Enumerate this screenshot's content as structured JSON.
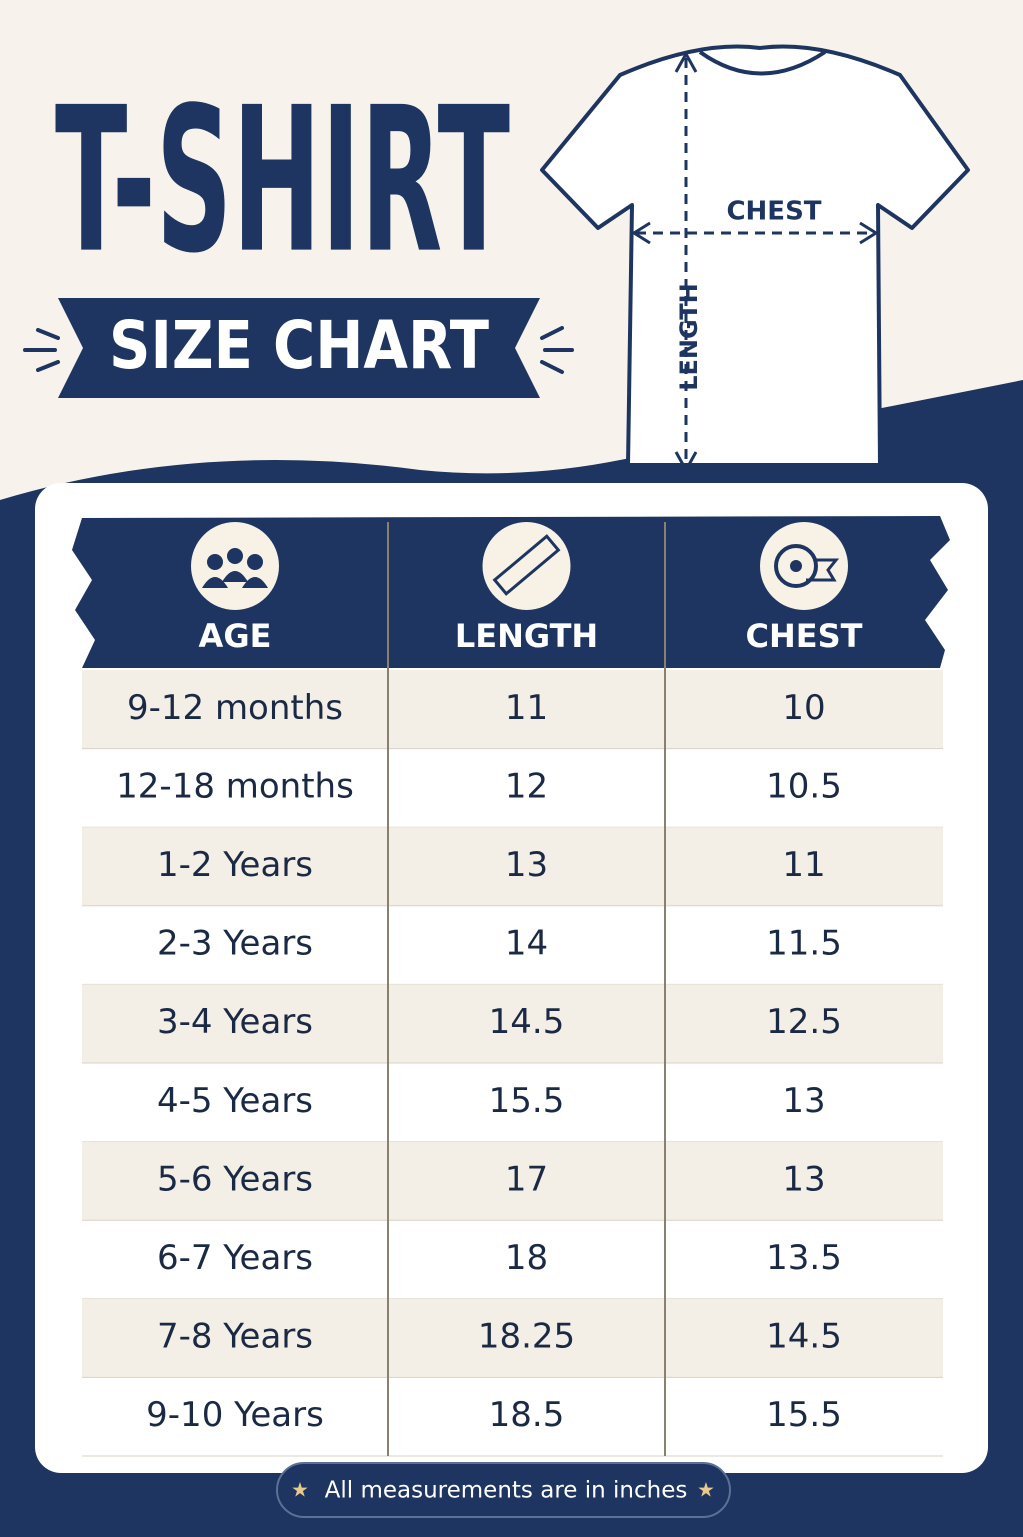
{
  "header": {
    "title": "T-SHIRT",
    "subtitle": "SIZE CHART"
  },
  "diagram": {
    "chest_label": "CHEST",
    "length_label": "LENGTH"
  },
  "table": {
    "columns": [
      "AGE",
      "LENGTH",
      "CHEST"
    ],
    "rows": [
      [
        "9-12 months",
        "11",
        "10"
      ],
      [
        "12-18 months",
        "12",
        "10.5"
      ],
      [
        "1-2 Years",
        "13",
        "11"
      ],
      [
        "2-3 Years",
        "14",
        "11.5"
      ],
      [
        "3-4 Years",
        "14.5",
        "12.5"
      ],
      [
        "4-5 Years",
        "15.5",
        "13"
      ],
      [
        "5-6 Years",
        "17",
        "13"
      ],
      [
        "6-7 Years",
        "18",
        "13.5"
      ],
      [
        "7-8 Years",
        "18.25",
        "14.5"
      ],
      [
        "9-10 Years",
        "18.5",
        "15.5"
      ]
    ]
  },
  "footer": {
    "note": "All measurements are in inches"
  }
}
